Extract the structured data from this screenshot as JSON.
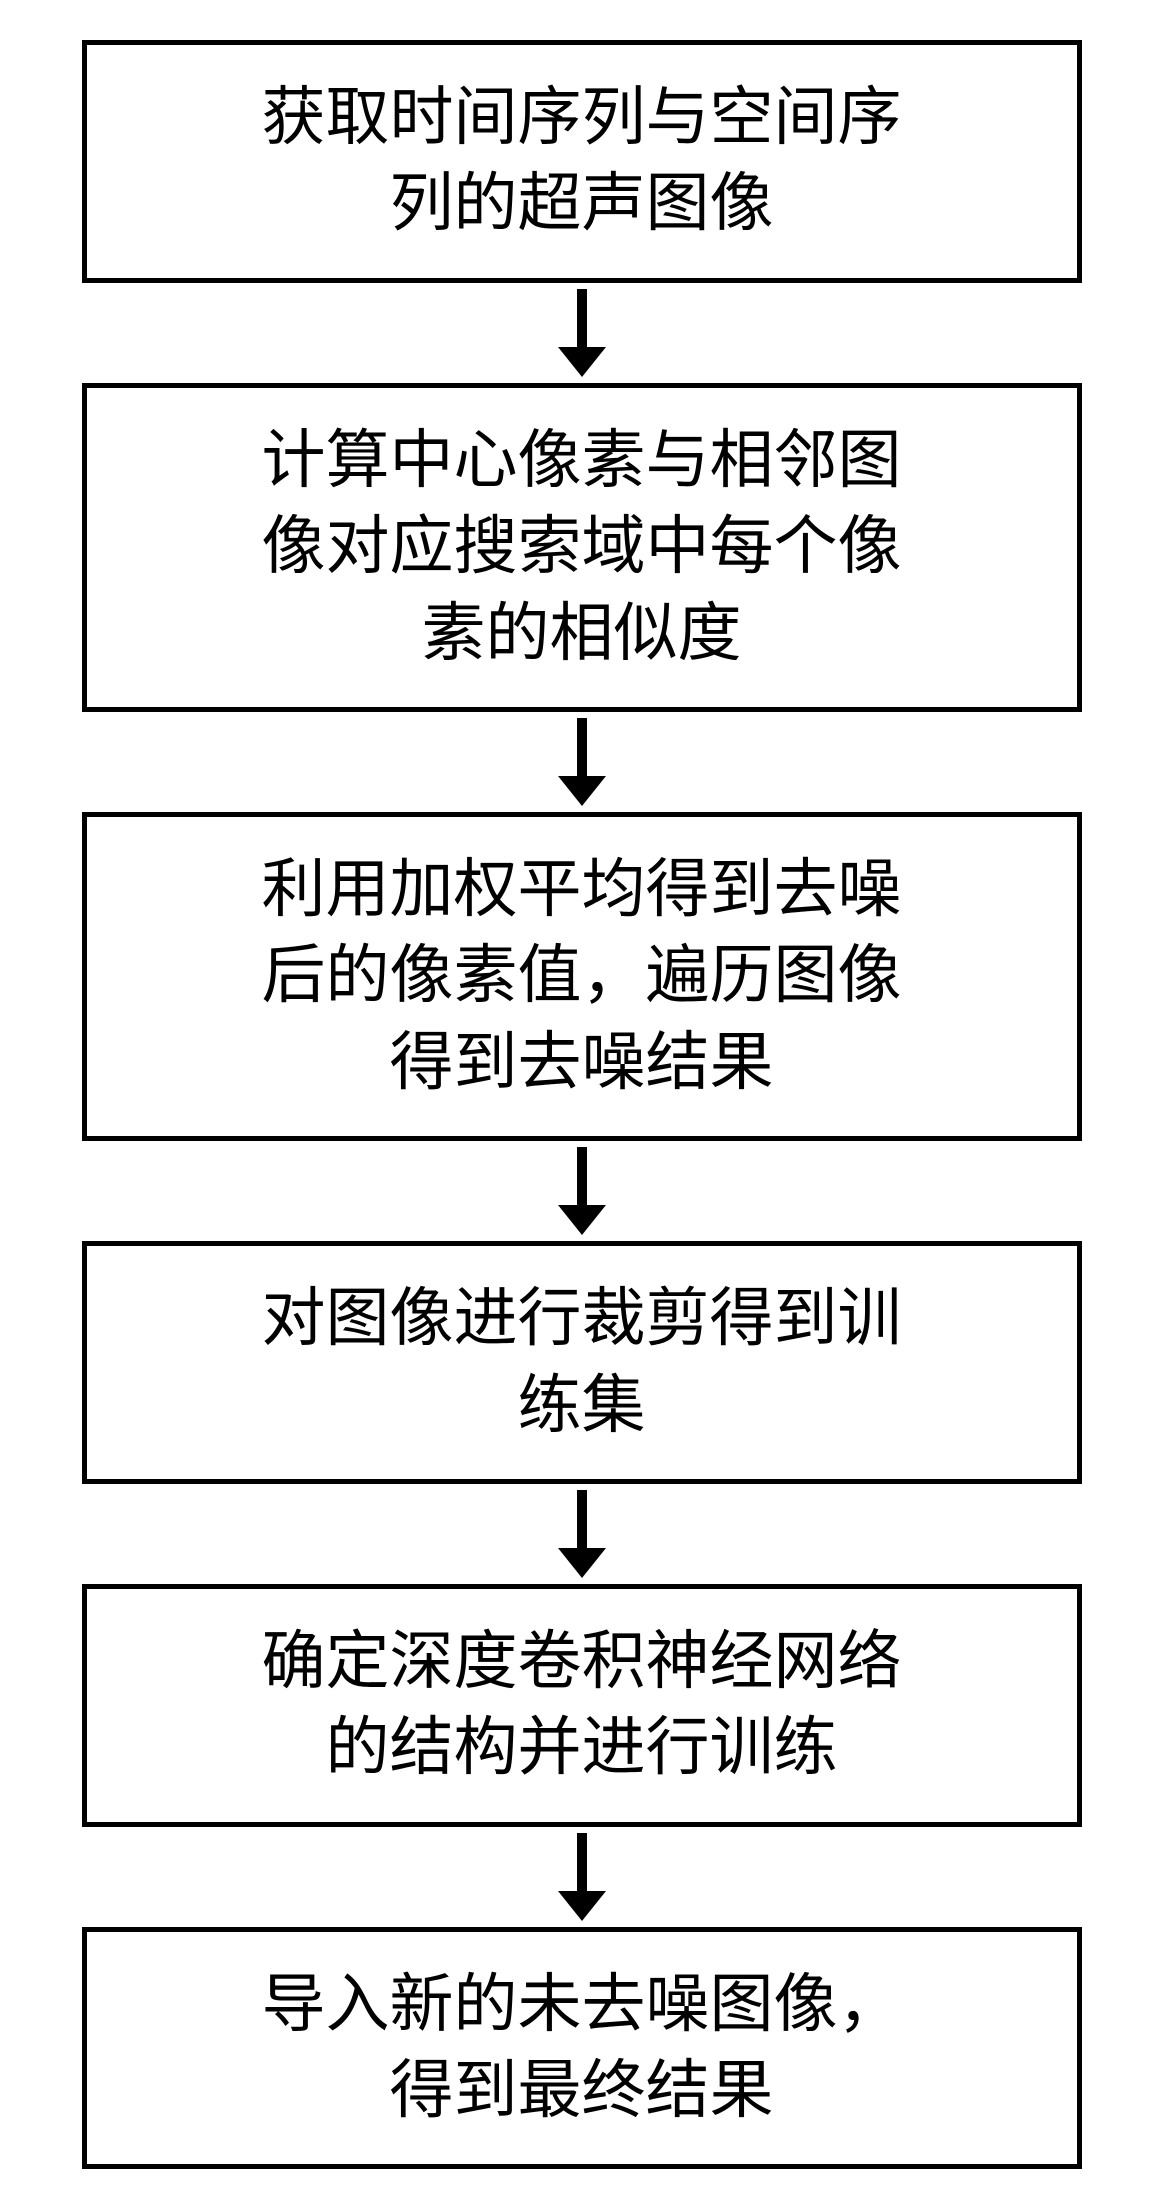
{
  "flowchart": {
    "type": "flowchart",
    "direction": "vertical",
    "box_border_color": "#000000",
    "box_border_width": 5,
    "box_background": "#ffffff",
    "text_color": "#000000",
    "text_fontsize": 64,
    "arrow_color": "#000000",
    "arrow_line_width": 10,
    "arrow_line_height": 60,
    "arrow_head_size": 24,
    "nodes": [
      {
        "id": "step1",
        "text": "获取时间序列与空间序\n列的超声图像"
      },
      {
        "id": "step2",
        "text": "计算中心像素与相邻图\n像对应搜索域中每个像\n素的相似度"
      },
      {
        "id": "step3",
        "text": "利用加权平均得到去噪\n后的像素值，遍历图像\n得到去噪结果"
      },
      {
        "id": "step4",
        "text": "对图像进行裁剪得到训\n练集"
      },
      {
        "id": "step5",
        "text": "确定深度卷积神经网络\n的结构并进行训练"
      },
      {
        "id": "step6",
        "text": "导入新的未去噪图像，\n得到最终结果"
      }
    ],
    "edges": [
      {
        "from": "step1",
        "to": "step2"
      },
      {
        "from": "step2",
        "to": "step3"
      },
      {
        "from": "step3",
        "to": "step4"
      },
      {
        "from": "step4",
        "to": "step5"
      },
      {
        "from": "step5",
        "to": "step6"
      }
    ]
  }
}
